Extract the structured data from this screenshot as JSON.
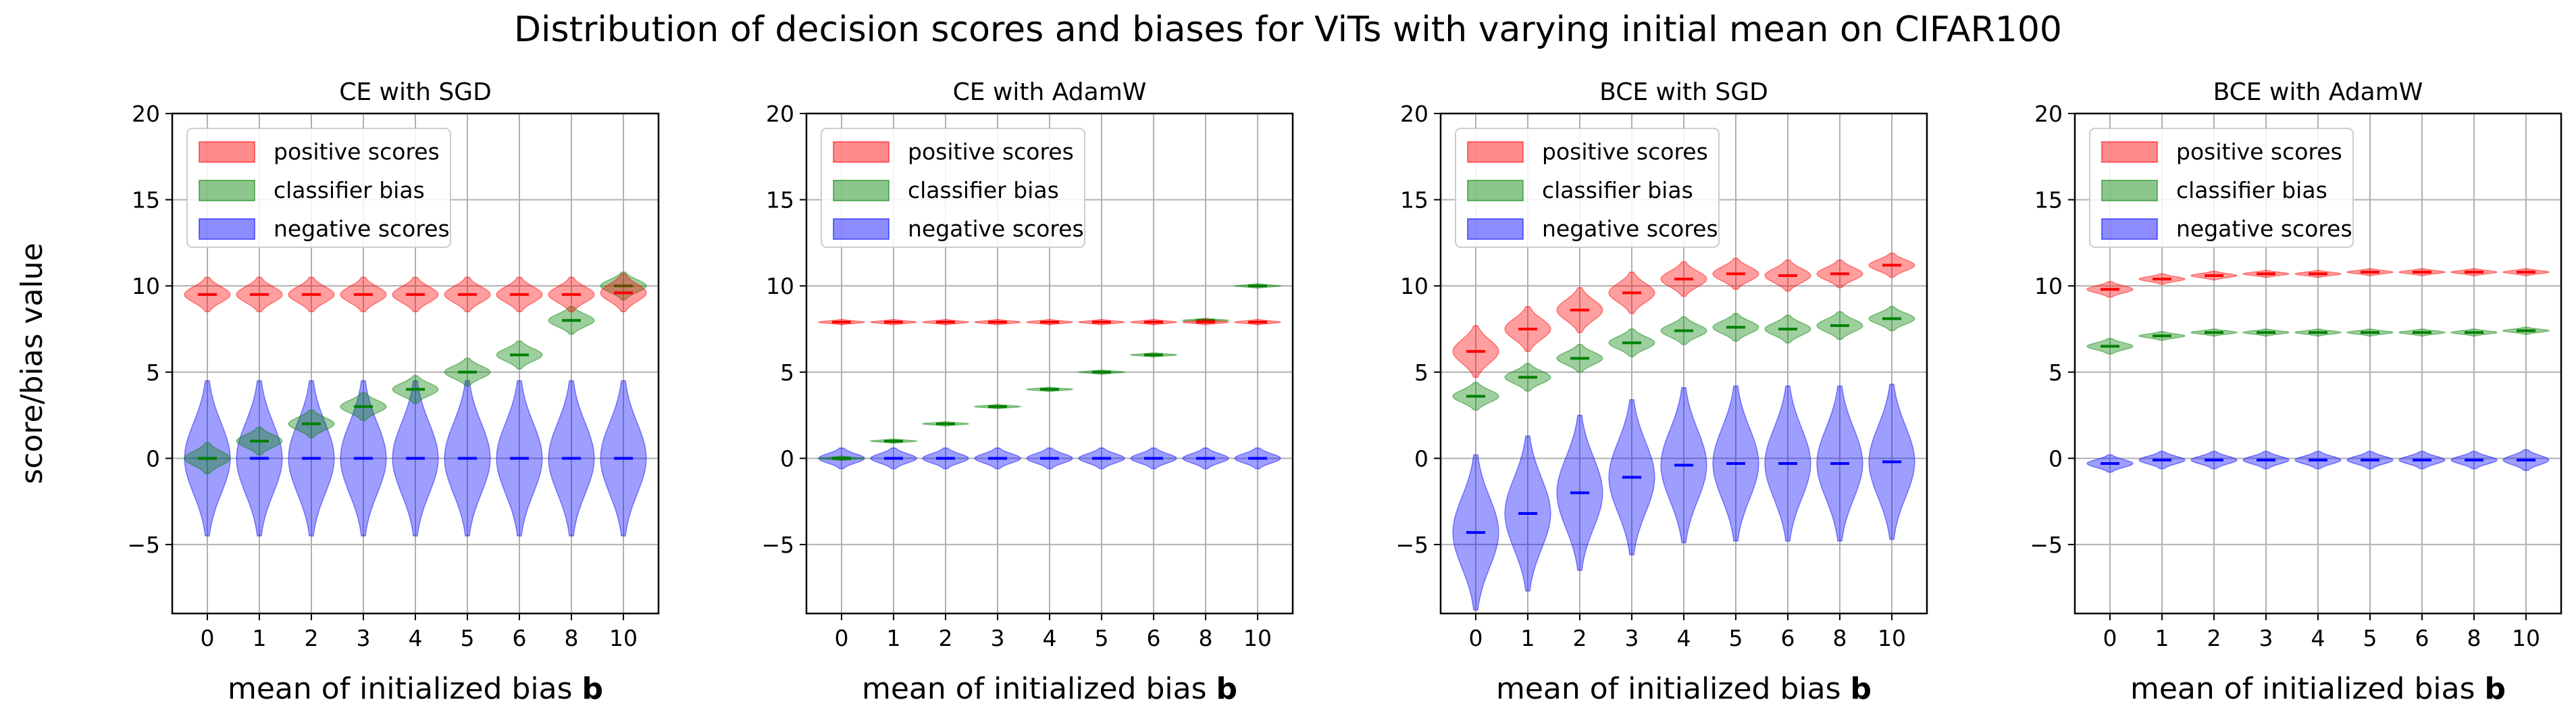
{
  "figure_title": "Distribution of decision scores and biases for ViTs with varying initial mean on CIFAR100",
  "colors": {
    "positive": "#ff0000",
    "bias": "#008000",
    "negative": "#0000ff",
    "grid": "#b0b0b0"
  },
  "chart_data": [
    {
      "type": "violin",
      "title": "CE with SGD",
      "xlabel_prefix": "mean of initialized bias ",
      "xlabel_bold": "b",
      "ylabel": "score/bias value",
      "categories": [
        "0",
        "1",
        "2",
        "3",
        "4",
        "5",
        "6",
        "8",
        "10"
      ],
      "ylim": [
        -9,
        20
      ],
      "yticks": [
        -5,
        0,
        5,
        10,
        15,
        20
      ],
      "grid": true,
      "legend_position": "upper-left",
      "series": [
        {
          "name": "positive scores",
          "color": "#ff0000",
          "medians": [
            9.5,
            9.5,
            9.5,
            9.5,
            9.5,
            9.5,
            9.5,
            9.5,
            9.6
          ],
          "halfspread": [
            1.0,
            1.0,
            1.0,
            1.0,
            1.0,
            1.0,
            1.0,
            1.0,
            1.1
          ]
        },
        {
          "name": "classifier bias",
          "color": "#008000",
          "medians": [
            0,
            1,
            2,
            3,
            4,
            5,
            6,
            8,
            10
          ],
          "halfspread": [
            0.9,
            0.8,
            0.8,
            0.8,
            0.8,
            0.8,
            0.8,
            0.8,
            0.8
          ]
        },
        {
          "name": "negative scores",
          "color": "#0000ff",
          "medians": [
            0,
            0,
            0,
            0,
            0,
            0,
            0,
            0,
            0
          ],
          "halfspread": [
            4.5,
            4.5,
            4.5,
            4.5,
            4.5,
            4.5,
            4.5,
            4.5,
            4.5
          ]
        }
      ]
    },
    {
      "type": "violin",
      "title": "CE with AdamW",
      "xlabel_prefix": "mean of initialized bias ",
      "xlabel_bold": "b",
      "ylabel": "",
      "categories": [
        "0",
        "1",
        "2",
        "3",
        "4",
        "5",
        "6",
        "8",
        "10"
      ],
      "ylim": [
        -9,
        20
      ],
      "yticks": [
        -5,
        0,
        5,
        10,
        15,
        20
      ],
      "grid": true,
      "legend_position": "upper-left",
      "series": [
        {
          "name": "positive scores",
          "color": "#ff0000",
          "medians": [
            7.9,
            7.9,
            7.9,
            7.9,
            7.9,
            7.9,
            7.9,
            7.9,
            7.9
          ],
          "halfspread": [
            0.15,
            0.15,
            0.15,
            0.15,
            0.15,
            0.15,
            0.15,
            0.15,
            0.15
          ]
        },
        {
          "name": "classifier bias",
          "color": "#008000",
          "medians": [
            0,
            1,
            2,
            3,
            4,
            5,
            6,
            8,
            10
          ],
          "halfspread": [
            0.12,
            0.12,
            0.12,
            0.12,
            0.12,
            0.12,
            0.12,
            0.12,
            0.12
          ]
        },
        {
          "name": "negative scores",
          "color": "#0000ff",
          "medians": [
            0,
            0,
            0,
            0,
            0,
            0,
            0,
            0,
            0
          ],
          "halfspread": [
            0.6,
            0.6,
            0.6,
            0.6,
            0.6,
            0.6,
            0.6,
            0.6,
            0.6
          ]
        }
      ]
    },
    {
      "type": "violin",
      "title": "BCE with SGD",
      "xlabel_prefix": "mean of initialized bias ",
      "xlabel_bold": "b",
      "ylabel": "",
      "categories": [
        "0",
        "1",
        "2",
        "3",
        "4",
        "5",
        "6",
        "8",
        "10"
      ],
      "ylim": [
        -9,
        20
      ],
      "yticks": [
        -5,
        0,
        5,
        10,
        15,
        20
      ],
      "grid": true,
      "legend_position": "upper-left",
      "series": [
        {
          "name": "positive scores",
          "color": "#ff0000",
          "medians": [
            6.2,
            7.5,
            8.6,
            9.6,
            10.4,
            10.7,
            10.6,
            10.7,
            11.2
          ],
          "halfspread": [
            1.5,
            1.3,
            1.3,
            1.2,
            1.0,
            0.9,
            0.9,
            0.8,
            0.7
          ]
        },
        {
          "name": "classifier bias",
          "color": "#008000",
          "medians": [
            3.6,
            4.7,
            5.8,
            6.7,
            7.4,
            7.6,
            7.5,
            7.7,
            8.1
          ],
          "halfspread": [
            0.8,
            0.8,
            0.8,
            0.8,
            0.8,
            0.8,
            0.8,
            0.8,
            0.7
          ]
        },
        {
          "name": "negative scores",
          "color": "#0000ff",
          "medians": [
            -4.3,
            -3.2,
            -2.0,
            -1.1,
            -0.4,
            -0.3,
            -0.3,
            -0.3,
            -0.2
          ],
          "halfspread": [
            4.5,
            4.5,
            4.5,
            4.5,
            4.5,
            4.5,
            4.5,
            4.5,
            4.5
          ]
        }
      ]
    },
    {
      "type": "violin",
      "title": "BCE with AdamW",
      "xlabel_prefix": "mean of initialized bias ",
      "xlabel_bold": "b",
      "ylabel": "",
      "categories": [
        "0",
        "1",
        "2",
        "3",
        "4",
        "5",
        "6",
        "8",
        "10"
      ],
      "ylim": [
        -9,
        20
      ],
      "yticks": [
        -5,
        0,
        5,
        10,
        15,
        20
      ],
      "grid": true,
      "legend_position": "upper-left",
      "series": [
        {
          "name": "positive scores",
          "color": "#ff0000",
          "medians": [
            9.8,
            10.4,
            10.6,
            10.7,
            10.7,
            10.8,
            10.8,
            10.8,
            10.8
          ],
          "halfspread": [
            0.45,
            0.3,
            0.25,
            0.2,
            0.2,
            0.2,
            0.2,
            0.2,
            0.2
          ]
        },
        {
          "name": "classifier bias",
          "color": "#008000",
          "medians": [
            6.5,
            7.1,
            7.3,
            7.3,
            7.3,
            7.3,
            7.3,
            7.3,
            7.4
          ],
          "halfspread": [
            0.45,
            0.25,
            0.2,
            0.2,
            0.2,
            0.2,
            0.2,
            0.2,
            0.2
          ]
        },
        {
          "name": "negative scores",
          "color": "#0000ff",
          "medians": [
            -0.3,
            -0.1,
            -0.1,
            -0.1,
            -0.1,
            -0.1,
            -0.1,
            -0.1,
            -0.1
          ],
          "halfspread": [
            0.5,
            0.5,
            0.5,
            0.5,
            0.5,
            0.5,
            0.5,
            0.5,
            0.6
          ]
        }
      ]
    }
  ]
}
